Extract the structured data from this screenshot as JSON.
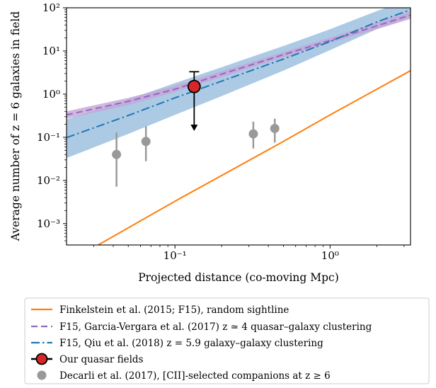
{
  "chart_data": {
    "type": "line",
    "xlabel": "Projected distance (co-moving Mpc)",
    "ylabel": "Average number of z = 6 galaxies in field",
    "xscale": "log",
    "yscale": "log",
    "xlim": [
      0.02,
      3.3
    ],
    "ylim": [
      0.00032,
      100
    ],
    "x_ticks": [
      {
        "value": 0.1,
        "label": "10⁻¹"
      },
      {
        "value": 1,
        "label": "10⁰"
      }
    ],
    "y_ticks": [
      {
        "value": 0.001,
        "label": "10⁻³"
      },
      {
        "value": 0.01,
        "label": "10⁻²"
      },
      {
        "value": 0.1,
        "label": "10⁻¹"
      },
      {
        "value": 1,
        "label": "10⁰"
      },
      {
        "value": 10,
        "label": "10¹"
      },
      {
        "value": 100,
        "label": "10²"
      }
    ],
    "grid": false,
    "legend_position": "below plot",
    "series": [
      {
        "name": "Finkelstein et al. (2015; F15), random sightline",
        "style": "solid line",
        "color": "#ff7f0e",
        "x": [
          0.031,
          0.1,
          0.5,
          1.0,
          3.3
        ],
        "y": [
          0.0003,
          0.0033,
          0.08,
          0.33,
          3.5
        ]
      },
      {
        "name": "F15, Garcia-Vergara et al. (2017) z ≃ 4 quasar–galaxy clustering",
        "style": "dashed line with band",
        "color": "#9467bd",
        "band_color": "#c4a5d8",
        "x": [
          0.02,
          0.05,
          0.1,
          0.2,
          0.5,
          1.0,
          2.0,
          3.3
        ],
        "y": [
          0.33,
          0.68,
          1.3,
          2.9,
          8.2,
          17.5,
          38,
          68
        ],
        "y_low": [
          0.27,
          0.56,
          1.12,
          2.5,
          7.2,
          15.5,
          32,
          55
        ],
        "y_high": [
          0.4,
          0.82,
          1.55,
          3.4,
          9.4,
          20.5,
          45,
          82
        ]
      },
      {
        "name": "F15, Qiu et al. (2018) z = 5.9 galaxy–galaxy clustering",
        "style": "dash-dot line with band",
        "color": "#1f77b4",
        "band_color": "#a9c7e3",
        "x": [
          0.02,
          0.05,
          0.1,
          0.2,
          0.5,
          1.0,
          2.0,
          3.3
        ],
        "y": [
          0.098,
          0.32,
          0.82,
          2.0,
          6.5,
          16.5,
          47,
          90
        ],
        "y_low": [
          0.033,
          0.12,
          0.33,
          0.9,
          3.5,
          10.5,
          32,
          60
        ],
        "y_high": [
          0.26,
          0.75,
          1.8,
          4.2,
          13,
          32,
          84,
          160
        ]
      },
      {
        "name": "Our quasar fields",
        "style": "marker with upper-limit arrow",
        "color": "#d62728",
        "points": [
          {
            "x": 0.133,
            "y": 1.5,
            "y_err_high": 3.3,
            "y_arrow_to": 0.14
          }
        ]
      },
      {
        "name": "Decarli et al. (2017), [CII]-selected companions at z ≥ 6",
        "style": "markers with error bars",
        "color": "#999999",
        "points": [
          {
            "x": 0.042,
            "y": 0.04,
            "y_low": 0.0072,
            "y_high": 0.13
          },
          {
            "x": 0.065,
            "y": 0.08,
            "y_low": 0.028,
            "y_high": 0.18
          },
          {
            "x": 0.32,
            "y": 0.12,
            "y_low": 0.055,
            "y_high": 0.23
          },
          {
            "x": 0.44,
            "y": 0.16,
            "y_low": 0.075,
            "y_high": 0.27
          }
        ]
      }
    ]
  }
}
